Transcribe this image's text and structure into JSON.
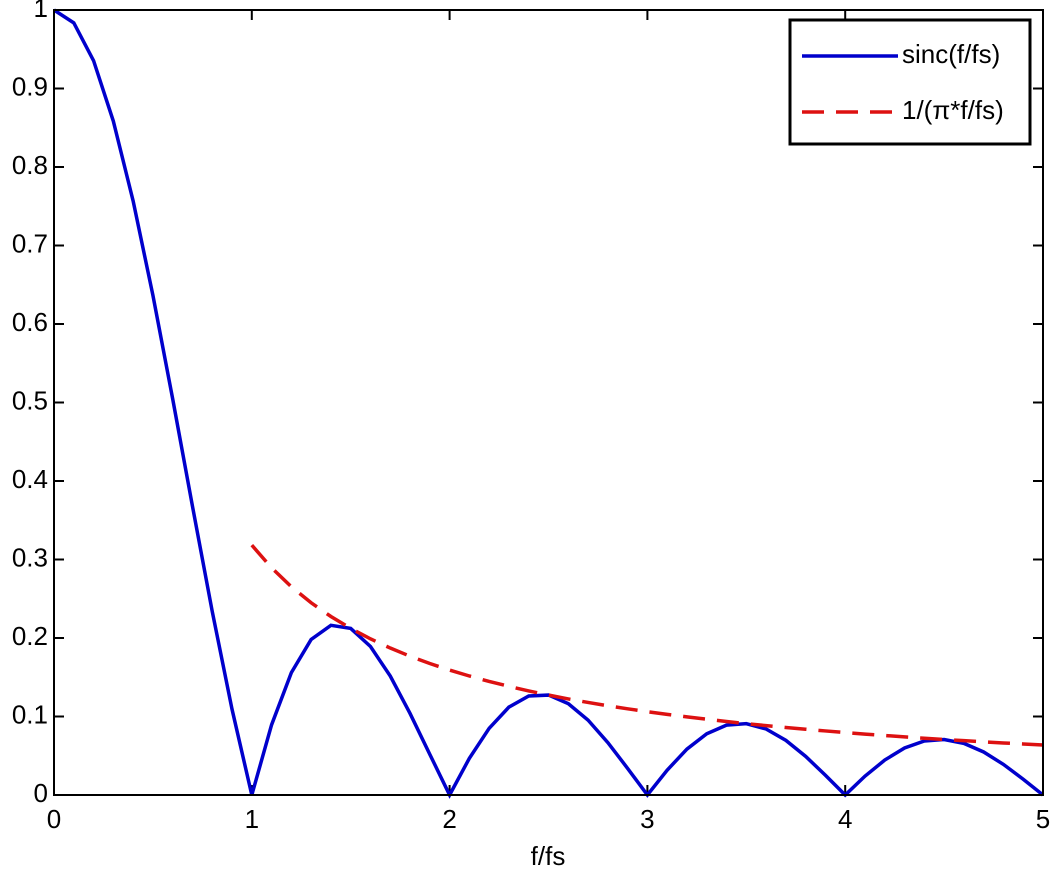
{
  "chart_data": {
    "type": "line",
    "x_label": "f/fs",
    "x": [
      0,
      0.1,
      0.2,
      0.3,
      0.4,
      0.5,
      0.6,
      0.7,
      0.8,
      0.9,
      1,
      1.1,
      1.2,
      1.3,
      1.4,
      1.5,
      1.6,
      1.7,
      1.8,
      1.9,
      2,
      2.1,
      2.2,
      2.3,
      2.4,
      2.5,
      2.6,
      2.7,
      2.8,
      2.9,
      3,
      3.1,
      3.2,
      3.3,
      3.4,
      3.5,
      3.6,
      3.7,
      3.8,
      3.9,
      4,
      4.1,
      4.2,
      4.3,
      4.4,
      4.5,
      4.6,
      4.7,
      4.8,
      4.9,
      5
    ],
    "series": [
      {
        "name": "sinc(f/fs)",
        "color": "#0000cc",
        "style": "solid",
        "values": [
          1,
          0.9836,
          0.9355,
          0.8584,
          0.7568,
          0.6366,
          0.5046,
          0.3679,
          0.2339,
          0.1093,
          0,
          0.0894,
          0.1559,
          0.1981,
          0.2162,
          0.2122,
          0.1892,
          0.1515,
          0.1039,
          0.0518,
          0,
          0.0468,
          0.085,
          0.112,
          0.1261,
          0.1273,
          0.1164,
          0.0954,
          0.0668,
          0.0339,
          0,
          0.0317,
          0.0585,
          0.078,
          0.089,
          0.0909,
          0.0841,
          0.0696,
          0.0492,
          0.0252,
          0,
          0.024,
          0.0445,
          0.0599,
          0.0688,
          0.0707,
          0.0658,
          0.0548,
          0.039,
          0.0201,
          0
        ]
      },
      {
        "name": "1/(π*f/fs)",
        "color": "#dd1111",
        "style": "dashed",
        "values": [
          null,
          null,
          null,
          null,
          null,
          null,
          null,
          null,
          null,
          null,
          0.3183,
          0.2894,
          0.2653,
          0.2449,
          0.2274,
          0.2122,
          0.1989,
          0.1872,
          0.1768,
          0.1675,
          0.1592,
          0.1516,
          0.1447,
          0.1384,
          0.1326,
          0.1273,
          0.1224,
          0.1179,
          0.1137,
          0.1098,
          0.1061,
          0.1027,
          0.0995,
          0.0965,
          0.0936,
          0.0909,
          0.0884,
          0.086,
          0.0838,
          0.0816,
          0.0796,
          0.0776,
          0.0758,
          0.074,
          0.0723,
          0.0707,
          0.0692,
          0.0677,
          0.0663,
          0.065,
          0.0637
        ]
      }
    ],
    "xlim": [
      0,
      5
    ],
    "xticks": [
      0,
      1,
      2,
      3,
      4,
      5
    ],
    "ylim": [
      0,
      1
    ],
    "yticks": [
      0,
      0.1,
      0.2,
      0.3,
      0.4,
      0.5,
      0.6,
      0.7,
      0.8,
      0.9,
      1
    ],
    "grid": false,
    "legend": "top-right"
  }
}
